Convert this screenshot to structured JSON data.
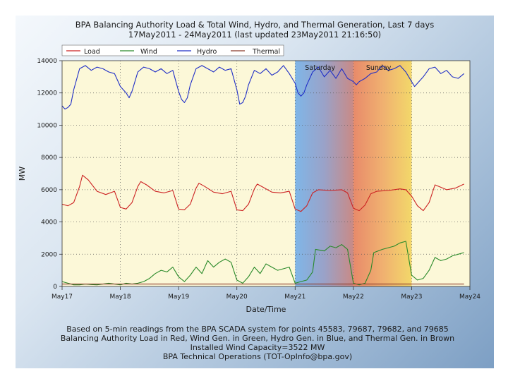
{
  "chart_data": {
    "type": "line",
    "title_line1": "BPA Balancing Authority Load & Total Wind, Hydro, and Thermal Generation, Last 7 days",
    "title_line2": "17May2011 - 24May2011 (last updated 23May2011 21:16:50)",
    "xlabel": "Date/Time",
    "ylabel": "MW",
    "ylim": [
      0,
      14000
    ],
    "yticks": [
      0,
      2000,
      4000,
      6000,
      8000,
      10000,
      12000,
      14000
    ],
    "xlim": [
      0,
      7
    ],
    "xtick_labels": [
      "May17",
      "May18",
      "May19",
      "May20",
      "May21",
      "May22",
      "May23",
      "May24"
    ],
    "grid": true,
    "legend_position": "top",
    "weekend_labels": [
      {
        "label": "Saturday",
        "day_start": 4
      },
      {
        "label": "Sunday",
        "day_start": 5
      }
    ],
    "series": [
      {
        "name": "Load",
        "color": "#cc2222",
        "x": [
          0,
          0.1,
          0.2,
          0.3,
          0.35,
          0.45,
          0.6,
          0.75,
          0.9,
          1.0,
          1.1,
          1.2,
          1.3,
          1.35,
          1.45,
          1.6,
          1.75,
          1.9,
          2.0,
          2.1,
          2.2,
          2.3,
          2.35,
          2.45,
          2.6,
          2.75,
          2.9,
          3.0,
          3.1,
          3.2,
          3.3,
          3.35,
          3.45,
          3.6,
          3.75,
          3.9,
          4.0,
          4.1,
          4.2,
          4.3,
          4.4,
          4.6,
          4.8,
          4.9,
          5.0,
          5.1,
          5.2,
          5.3,
          5.4,
          5.6,
          5.8,
          5.9,
          6.0,
          6.1,
          6.2,
          6.3,
          6.4,
          6.5,
          6.6,
          6.75,
          6.9
        ],
        "values": [
          5100,
          5000,
          5200,
          6200,
          6900,
          6600,
          5900,
          5700,
          5900,
          4900,
          4800,
          5200,
          6200,
          6500,
          6300,
          5900,
          5800,
          5950,
          4800,
          4750,
          5100,
          6100,
          6400,
          6200,
          5850,
          5750,
          5900,
          4750,
          4700,
          5100,
          6050,
          6350,
          6150,
          5850,
          5800,
          5900,
          4800,
          4650,
          5000,
          5800,
          6000,
          5950,
          6000,
          5800,
          4850,
          4700,
          5050,
          5750,
          5900,
          5950,
          6050,
          6000,
          5600,
          5000,
          4700,
          5200,
          6300,
          6150,
          6000,
          6100,
          6350
        ]
      },
      {
        "name": "Wind",
        "color": "#2a8a2a",
        "x": [
          0,
          0.1,
          0.2,
          0.3,
          0.4,
          0.5,
          0.6,
          0.7,
          0.8,
          0.9,
          1.0,
          1.1,
          1.2,
          1.3,
          1.4,
          1.5,
          1.6,
          1.7,
          1.8,
          1.9,
          2.0,
          2.1,
          2.2,
          2.3,
          2.4,
          2.5,
          2.6,
          2.7,
          2.8,
          2.9,
          3.0,
          3.1,
          3.2,
          3.3,
          3.4,
          3.5,
          3.6,
          3.7,
          3.8,
          3.9,
          4.0,
          4.1,
          4.2,
          4.3,
          4.35,
          4.5,
          4.6,
          4.7,
          4.8,
          4.9,
          5.0,
          5.1,
          5.2,
          5.3,
          5.35,
          5.5,
          5.6,
          5.7,
          5.8,
          5.9,
          6.0,
          6.1,
          6.2,
          6.3,
          6.4,
          6.5,
          6.6,
          6.7,
          6.8,
          6.9
        ],
        "values": [
          300,
          200,
          100,
          100,
          150,
          120,
          100,
          150,
          200,
          150,
          100,
          200,
          150,
          200,
          300,
          500,
          800,
          1000,
          900,
          1200,
          600,
          300,
          700,
          1200,
          800,
          1600,
          1200,
          1500,
          1700,
          1500,
          400,
          200,
          600,
          1200,
          800,
          1400,
          1200,
          1000,
          1100,
          1200,
          200,
          300,
          400,
          900,
          2300,
          2200,
          2500,
          2400,
          2600,
          2300,
          200,
          100,
          200,
          1000,
          2100,
          2300,
          2400,
          2500,
          2700,
          2800,
          700,
          400,
          500,
          1000,
          1800,
          1600,
          1700,
          1900,
          2000,
          2100
        ]
      },
      {
        "name": "Hydro",
        "color": "#1f2ec7",
        "x": [
          0,
          0.05,
          0.1,
          0.15,
          0.2,
          0.3,
          0.4,
          0.5,
          0.6,
          0.7,
          0.8,
          0.9,
          0.95,
          1.0,
          1.1,
          1.15,
          1.2,
          1.3,
          1.4,
          1.5,
          1.6,
          1.7,
          1.8,
          1.9,
          2.0,
          2.05,
          2.1,
          2.15,
          2.2,
          2.3,
          2.4,
          2.5,
          2.6,
          2.7,
          2.8,
          2.9,
          3.0,
          3.05,
          3.1,
          3.15,
          3.2,
          3.3,
          3.4,
          3.5,
          3.6,
          3.7,
          3.8,
          3.9,
          4.0,
          4.05,
          4.1,
          4.15,
          4.2,
          4.3,
          4.4,
          4.5,
          4.6,
          4.7,
          4.8,
          4.9,
          5.0,
          5.05,
          5.1,
          5.2,
          5.3,
          5.4,
          5.5,
          5.6,
          5.7,
          5.8,
          5.9,
          6.0,
          6.05,
          6.1,
          6.2,
          6.3,
          6.4,
          6.5,
          6.6,
          6.7,
          6.8,
          6.9
        ],
        "values": [
          11200,
          11000,
          11100,
          11300,
          12200,
          13500,
          13700,
          13400,
          13600,
          13500,
          13300,
          13200,
          12800,
          12400,
          12000,
          11700,
          12100,
          13300,
          13600,
          13500,
          13300,
          13500,
          13200,
          13400,
          12100,
          11600,
          11400,
          11700,
          12500,
          13500,
          13700,
          13500,
          13300,
          13600,
          13400,
          13500,
          12200,
          11300,
          11400,
          11800,
          12500,
          13400,
          13200,
          13500,
          13100,
          13300,
          13700,
          13200,
          12600,
          12000,
          11800,
          12000,
          12500,
          13300,
          13600,
          13000,
          13400,
          12900,
          13500,
          12900,
          12700,
          12500,
          12700,
          12900,
          13200,
          13300,
          13700,
          13400,
          13500,
          13700,
          13300,
          12700,
          12400,
          12600,
          13000,
          13500,
          13600,
          13200,
          13400,
          13000,
          12900,
          13200
        ]
      },
      {
        "name": "Thermal",
        "color": "#8b3a2a",
        "x": [
          0,
          1,
          2,
          3,
          4,
          5,
          6,
          6.9
        ],
        "values": [
          150,
          150,
          150,
          150,
          150,
          150,
          150,
          150
        ]
      }
    ]
  },
  "footer": {
    "line1": "Based on 5-min readings from the BPA SCADA system for points 45583, 79687, 79682, and 79685",
    "line2": "Balancing Authority Load in Red, Wind Gen. in Green, Hydro Gen. in Blue, and Thermal Gen. in Brown",
    "line3": "Installed Wind Capacity=3522 MW",
    "line4": "BPA Technical Operations (TOT-OpInfo@bpa.gov)"
  }
}
